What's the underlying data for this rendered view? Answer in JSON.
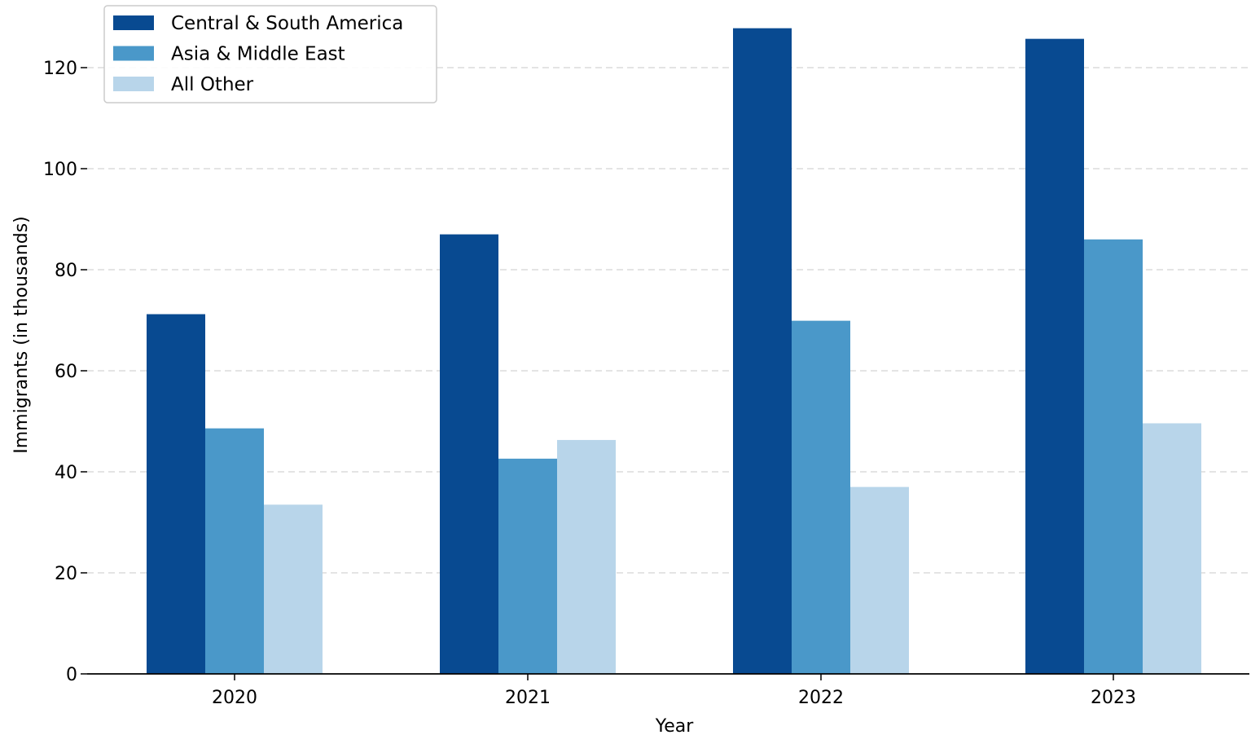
{
  "chart_data": {
    "type": "bar",
    "xlabel": "Year",
    "ylabel": "Immigrants (in thousands)",
    "categories": [
      "2020",
      "2021",
      "2022",
      "2023"
    ],
    "series": [
      {
        "name": "Central & South America",
        "values": [
          71.2,
          87.0,
          127.8,
          125.7
        ],
        "color": "#084a91"
      },
      {
        "name": "Asia & Middle East",
        "values": [
          48.6,
          42.6,
          69.9,
          86.0
        ],
        "color": "#4a98c9"
      },
      {
        "name": "All Other",
        "values": [
          33.5,
          46.3,
          37.0,
          49.6
        ],
        "color": "#b8d5ea"
      }
    ],
    "ylim": [
      0,
      128
    ],
    "yticks": [
      0,
      20,
      40,
      60,
      80,
      100,
      120
    ],
    "grid": "horizontal dashed",
    "legend": "top-left"
  }
}
